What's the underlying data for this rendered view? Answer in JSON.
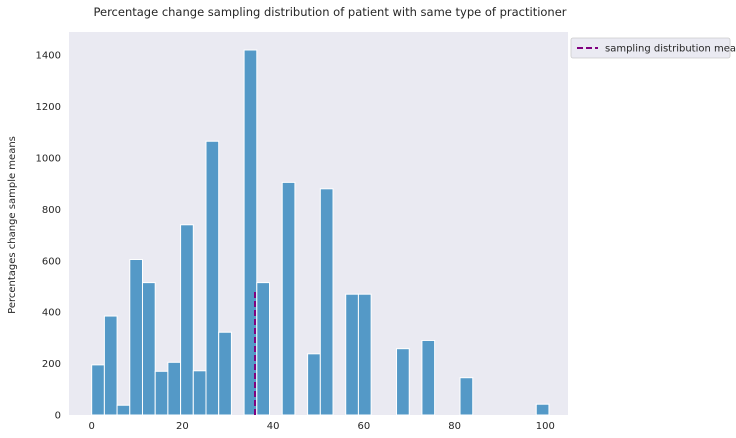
{
  "chart_data": {
    "type": "bar",
    "title": "Percentage change sampling distribution of patient with same type of practitioner",
    "xlabel": "",
    "ylabel": "Percentages change sample means",
    "xlim": [
      -5,
      105
    ],
    "ylim": [
      0,
      1490
    ],
    "x_ticks": [
      0,
      20,
      40,
      60,
      80,
      100
    ],
    "y_ticks": [
      0,
      200,
      400,
      600,
      800,
      1000,
      1200,
      1400
    ],
    "grid": false,
    "bin_width": 2.8,
    "bars": [
      {
        "x": 0.0,
        "value": 195
      },
      {
        "x": 2.8,
        "value": 385
      },
      {
        "x": 5.6,
        "value": 38
      },
      {
        "x": 8.4,
        "value": 605
      },
      {
        "x": 11.2,
        "value": 515
      },
      {
        "x": 14.0,
        "value": 170
      },
      {
        "x": 16.8,
        "value": 205
      },
      {
        "x": 19.6,
        "value": 740
      },
      {
        "x": 22.4,
        "value": 172
      },
      {
        "x": 25.2,
        "value": 1065
      },
      {
        "x": 28.0,
        "value": 322
      },
      {
        "x": 33.6,
        "value": 1420
      },
      {
        "x": 36.4,
        "value": 515
      },
      {
        "x": 42.0,
        "value": 905
      },
      {
        "x": 47.6,
        "value": 238
      },
      {
        "x": 50.4,
        "value": 880
      },
      {
        "x": 56.0,
        "value": 470
      },
      {
        "x": 58.8,
        "value": 470
      },
      {
        "x": 67.2,
        "value": 258
      },
      {
        "x": 72.8,
        "value": 290
      },
      {
        "x": 81.2,
        "value": 145
      },
      {
        "x": 98.0,
        "value": 42
      }
    ],
    "mean_line": {
      "label": "sampling distribution mean",
      "x": 36,
      "y_min": 0,
      "y_max": 490
    },
    "legend_position": "outside-top-right",
    "colors": {
      "bar": "#5499c7",
      "bar_edge": "#ffffff",
      "background": "#eaeaf2",
      "mean_line": "#800080"
    }
  }
}
